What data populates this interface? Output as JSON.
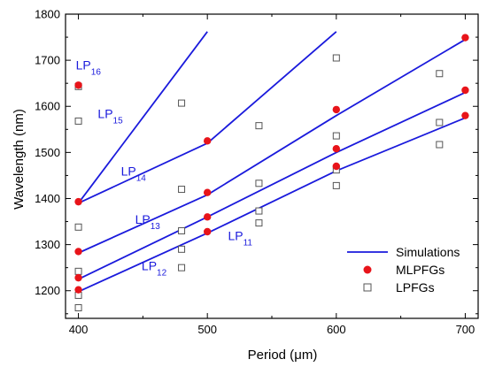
{
  "chart_data": {
    "type": "scatter",
    "xlabel": "Period (",
    "xlabel_unit": "μm",
    "xlabel_close": ")",
    "ylabel": "Wavelength (nm)",
    "xlim": [
      390,
      710
    ],
    "ylim": [
      1140,
      1800
    ],
    "x_ticks": [
      400,
      500,
      600,
      700
    ],
    "x_tick_labels": [
      "400",
      "500",
      "600",
      "700"
    ],
    "y_ticks": [
      1200,
      1300,
      1400,
      1500,
      1600,
      1700,
      1800
    ],
    "y_tick_labels": [
      "1200",
      "1300",
      "1400",
      "1500",
      "1600",
      "1700",
      "1800"
    ],
    "colors": {
      "line": "#1a1adc",
      "mlpfg": "#e8141a",
      "lpfg": "#555555"
    },
    "legend": {
      "position": "bottom-right",
      "entries": [
        "Simulations",
        "MLPFGs",
        "LPFGs"
      ]
    },
    "simulation_curves": [
      {
        "mode": "LP11",
        "x": [
          400,
          500,
          600,
          700
        ],
        "y": [
          1198,
          1325,
          1460,
          1575
        ]
      },
      {
        "mode": "LP12",
        "x": [
          400,
          500,
          600,
          700
        ],
        "y": [
          1225,
          1360,
          1500,
          1630
        ]
      },
      {
        "mode": "LP13",
        "x": [
          400,
          500,
          600,
          700
        ],
        "y": [
          1282,
          1408,
          1580,
          1745
        ]
      },
      {
        "mode": "LP14",
        "x": [
          400,
          500,
          600
        ],
        "y": [
          1390,
          1520,
          1762
        ]
      },
      {
        "mode": "LP15",
        "x": [
          400,
          500
        ],
        "y": [
          1390,
          1762
        ]
      }
    ],
    "mlpfg_points": {
      "x": [
        400,
        400,
        400,
        400,
        400,
        500,
        500,
        500,
        500,
        600,
        600,
        600,
        700,
        700,
        700
      ],
      "y": [
        1202,
        1228,
        1285,
        1393,
        1646,
        1328,
        1360,
        1413,
        1525,
        1470,
        1508,
        1593,
        1580,
        1635,
        1749
      ]
    },
    "lpfg_points": {
      "x": [
        400,
        400,
        400,
        400,
        400,
        400,
        480,
        480,
        480,
        480,
        480,
        540,
        540,
        540,
        540,
        600,
        600,
        600,
        600,
        680,
        680,
        680
      ],
      "y": [
        1163,
        1190,
        1242,
        1338,
        1568,
        1643,
        1250,
        1290,
        1330,
        1420,
        1607,
        1347,
        1373,
        1433,
        1558,
        1428,
        1462,
        1536,
        1705,
        1517,
        1565,
        1671
      ]
    },
    "mode_labels": [
      {
        "base": "LP",
        "sub": "16",
        "x": 398,
        "y": 1680
      },
      {
        "base": "LP",
        "sub": "15",
        "x": 415,
        "y": 1575
      },
      {
        "base": "LP",
        "sub": "14",
        "x": 433,
        "y": 1450
      },
      {
        "base": "LP",
        "sub": "13",
        "x": 444,
        "y": 1345
      },
      {
        "base": "LP",
        "sub": "12",
        "x": 449,
        "y": 1245
      },
      {
        "base": "LP",
        "sub": "11",
        "x": 516,
        "y": 1310
      }
    ]
  }
}
